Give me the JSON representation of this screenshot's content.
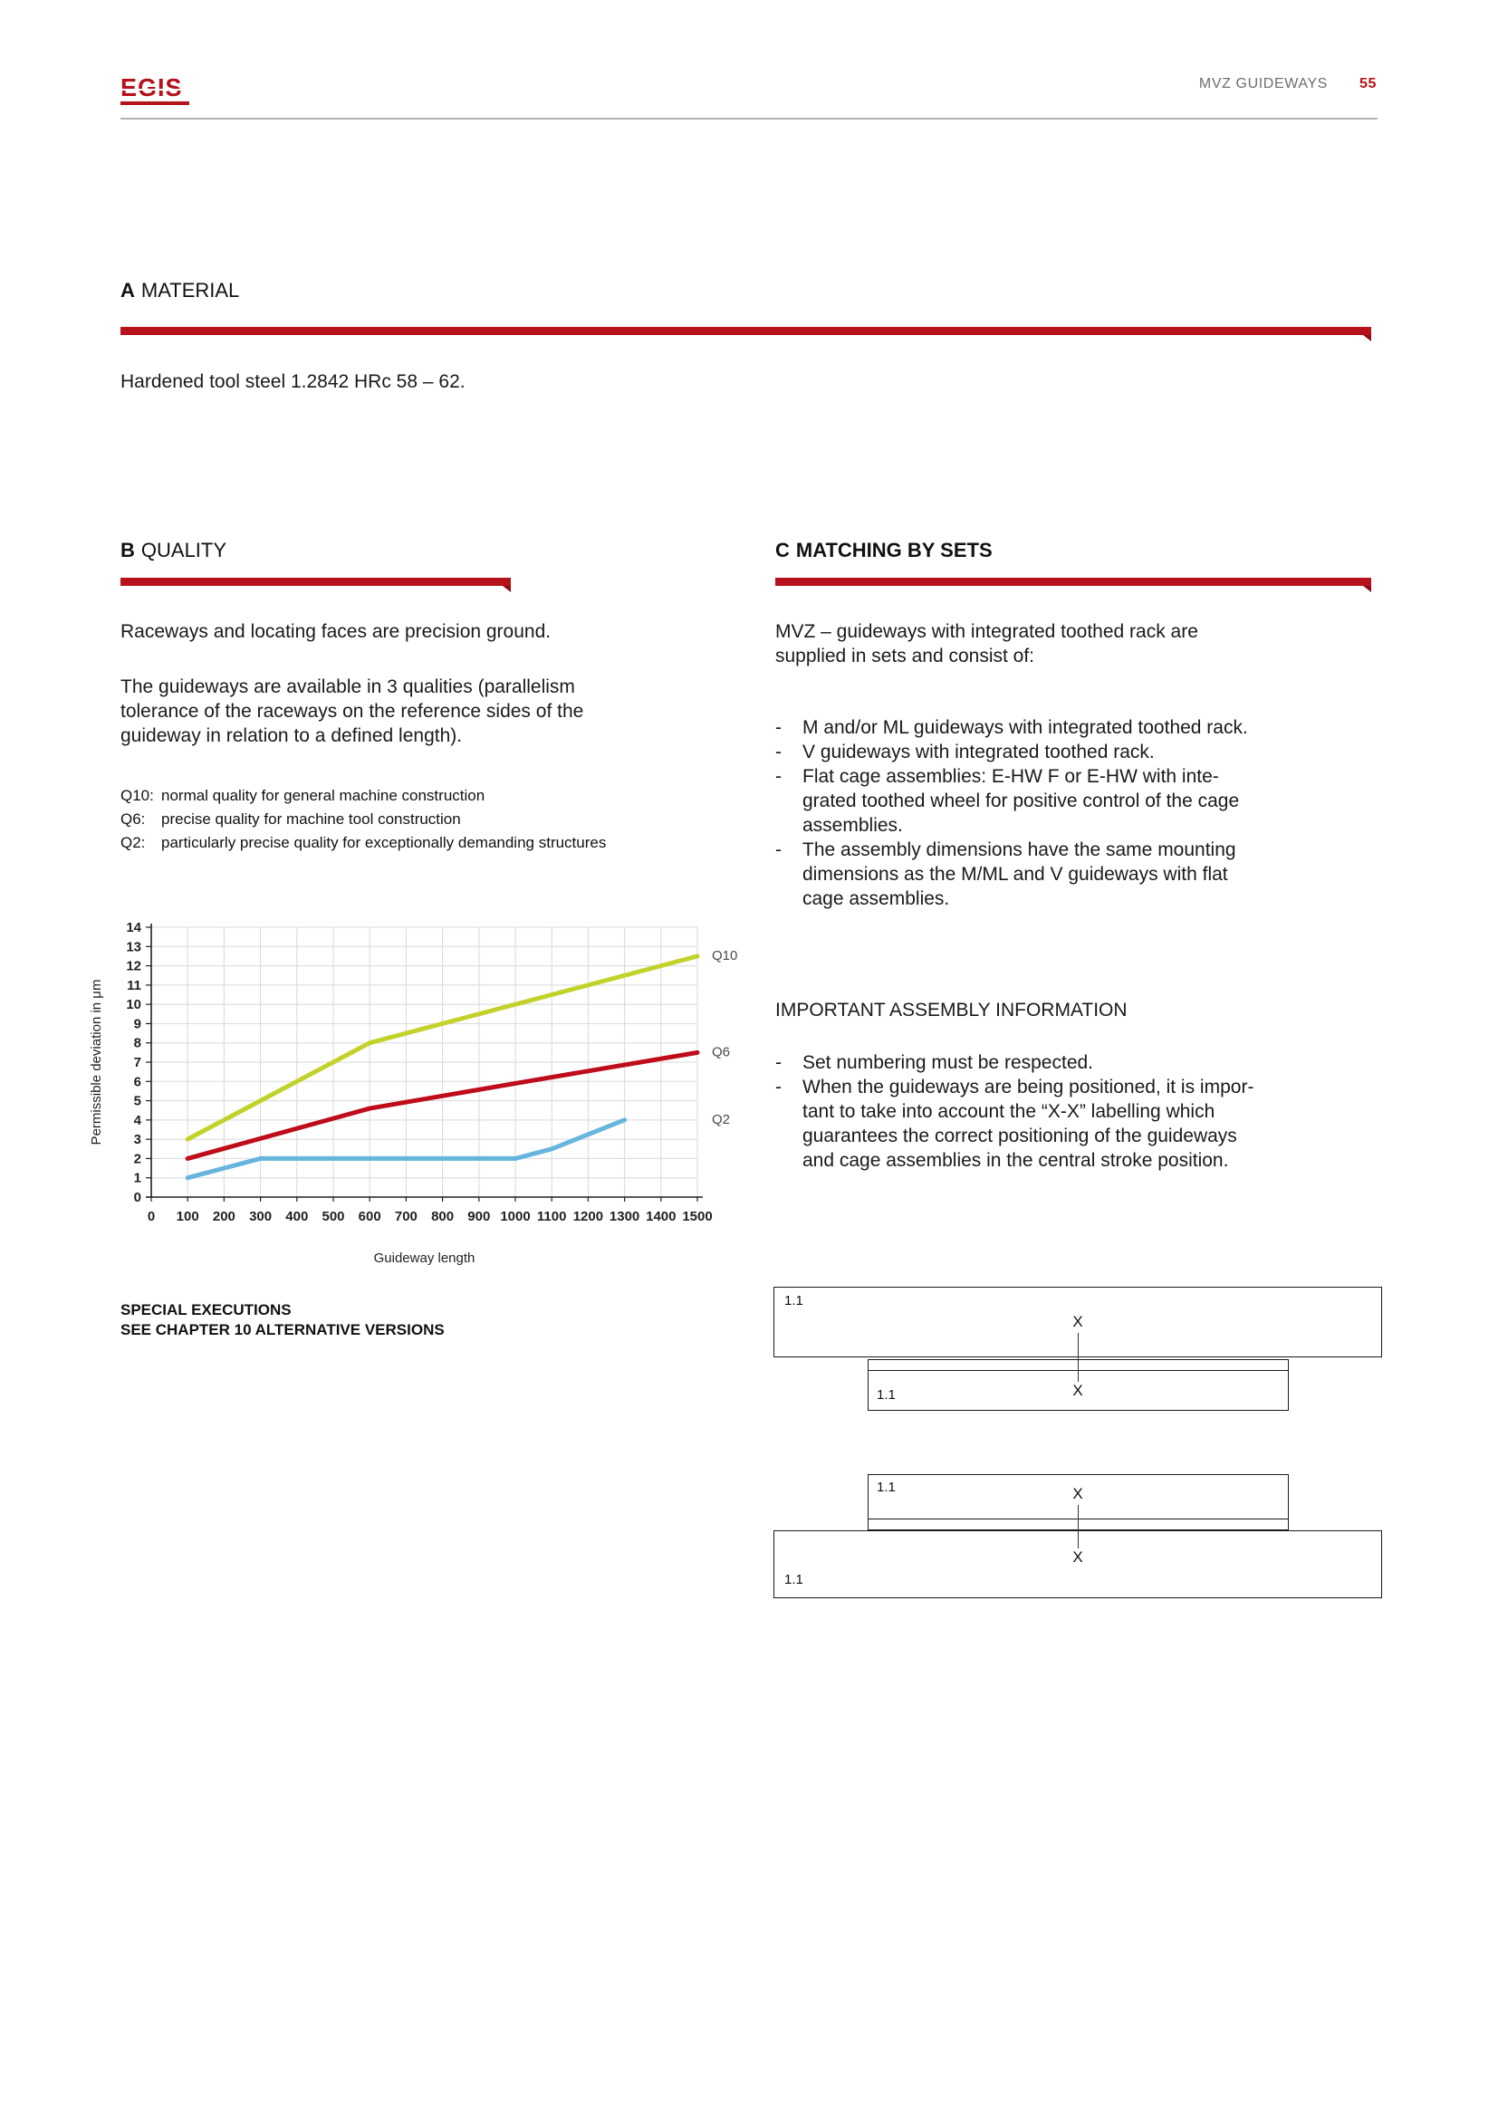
{
  "header": {
    "logo_text": "EGIS",
    "title": "MVZ GUIDEWAYS",
    "page_number": "55"
  },
  "colors": {
    "accent_red": "#b5121b",
    "header_gray": "#6d6e71",
    "rule_gray": "#b3b3b3",
    "grid_gray": "#d9d9d9",
    "q10_line": "#c2d22b",
    "q6_line": "#bf0c1a",
    "q2_line": "#66b5dd"
  },
  "section_a": {
    "letter": "A",
    "title": "MATERIAL",
    "body": "Hardened tool steel 1.2842 HRc 58 – 62."
  },
  "section_b": {
    "letter": "B",
    "title": "QUALITY",
    "para1": "Raceways and locating faces are precision ground.",
    "para2_lines": [
      "The guideways are available in 3 qualities (parallelism",
      "tolerance of the raceways on the reference sides of the",
      "guideway in relation to a defined length)."
    ],
    "qualities": [
      {
        "code": "Q10:",
        "desc": "normal quality for general machine construction"
      },
      {
        "code": "Q6:",
        "desc": "precise quality for machine tool construction"
      },
      {
        "code": "Q2:",
        "desc": "particularly precise quality for exceptionally demanding structures"
      }
    ],
    "special_note_lines": [
      "SPECIAL EXECUTIONS",
      "SEE CHAPTER 10 ALTERNATIVE VERSIONS"
    ]
  },
  "section_c": {
    "letter": "C",
    "title": "MATCHING BY SETS",
    "intro_lines": [
      "MVZ – guideways with integrated toothed rack are",
      "supplied in sets and consist of:"
    ],
    "bullets": [
      {
        "lines": [
          "M and/or ML guideways with integrated toothed rack."
        ]
      },
      {
        "lines": [
          "V guideways with integrated toothed rack."
        ]
      },
      {
        "lines": [
          "Flat cage assemblies: E-HW F or E-HW with inte-",
          "grated toothed wheel for positive control of the cage",
          "assemblies."
        ]
      },
      {
        "lines": [
          "The assembly dimensions have the same mounting",
          "dimensions as the M/ML and V guideways with flat",
          "cage assemblies."
        ]
      }
    ],
    "assembly_heading": "IMPORTANT ASSEMBLY INFORMATION",
    "assembly_bullets": [
      {
        "lines": [
          "Set numbering must be respected."
        ]
      },
      {
        "lines": [
          "When the guideways are being positioned, it is impor-",
          "tant to take into account the “X-X” labelling which",
          "guarantees the correct positioning of the guideways",
          "and cage assemblies in the central stroke position."
        ]
      }
    ]
  },
  "chart_data": {
    "type": "line",
    "title": "",
    "xlabel": "Guideway length",
    "ylabel": "Permissible deviation in μm",
    "xlim": [
      0,
      1500
    ],
    "xstep": 100,
    "ylim": [
      0,
      14
    ],
    "ystep": 1,
    "grid": true,
    "legend_position": "right of line ends",
    "series": [
      {
        "name": "Q10",
        "color": "#c2d22b",
        "points": [
          [
            100,
            3
          ],
          [
            600,
            8
          ],
          [
            1500,
            12.5
          ]
        ]
      },
      {
        "name": "Q6",
        "color": "#bf0c1a",
        "points": [
          [
            100,
            2
          ],
          [
            600,
            4.6
          ],
          [
            1000,
            5.9
          ],
          [
            1500,
            7.5
          ]
        ]
      },
      {
        "name": "Q2",
        "color": "#66b5dd",
        "points": [
          [
            100,
            1
          ],
          [
            300,
            2
          ],
          [
            1000,
            2
          ],
          [
            1100,
            2.5
          ],
          [
            1300,
            4
          ]
        ]
      }
    ]
  },
  "diagrams": {
    "scale_label": "1.1",
    "section_mark": "X"
  }
}
